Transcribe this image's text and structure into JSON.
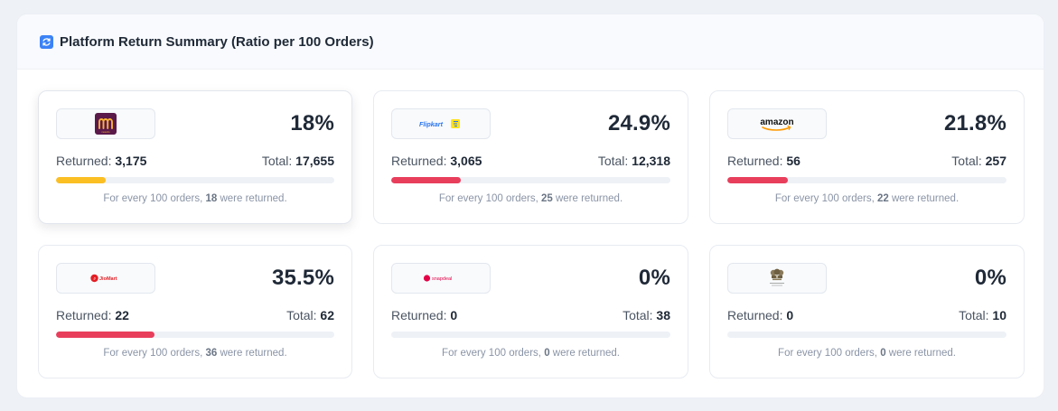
{
  "panel": {
    "title": "Platform Return Summary (Ratio per 100 Orders)",
    "icon": "refresh-icon"
  },
  "labels": {
    "returned": "Returned:",
    "total": "Total:",
    "note_prefix": "For every 100 orders,",
    "note_suffix": "were returned."
  },
  "platforms": [
    {
      "logo": "meesho-logo",
      "logo_text": "meesho",
      "percent": "18%",
      "ratio": 0.18,
      "returned": "3,175",
      "total": "17,655",
      "per100": "18",
      "bar_color": "#fbbf24"
    },
    {
      "logo": "flipkart-logo",
      "logo_text": "Flipkart",
      "percent": "24.9%",
      "ratio": 0.249,
      "returned": "3,065",
      "total": "12,318",
      "per100": "25",
      "bar_color": "#e83e5c"
    },
    {
      "logo": "amazon-logo",
      "logo_text": "amazon",
      "percent": "21.8%",
      "ratio": 0.218,
      "returned": "56",
      "total": "257",
      "per100": "22",
      "bar_color": "#e83e5c"
    },
    {
      "logo": "jiomart-logo",
      "logo_text": "JioMart",
      "percent": "35.5%",
      "ratio": 0.355,
      "returned": "22",
      "total": "62",
      "per100": "36",
      "bar_color": "#e83e5c"
    },
    {
      "logo": "snapdeal-logo",
      "logo_text": "snapdeal",
      "percent": "0%",
      "ratio": 0,
      "returned": "0",
      "total": "38",
      "per100": "0",
      "bar_color": "#e83e5c"
    },
    {
      "logo": "gov-emblem-logo",
      "logo_text": "",
      "percent": "0%",
      "ratio": 0,
      "returned": "0",
      "total": "10",
      "per100": "0",
      "bar_color": "#e83e5c"
    }
  ]
}
